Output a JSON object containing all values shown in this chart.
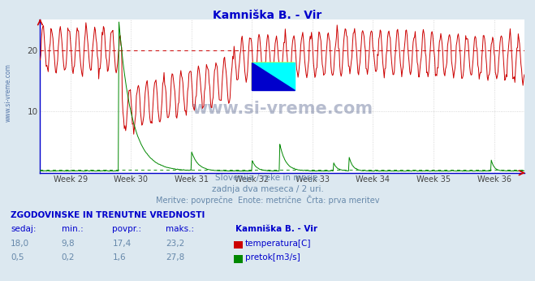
{
  "title": "Kamniška B. - Vir",
  "title_color": "#0000cc",
  "bg_color": "#dce8f0",
  "plot_bg_color": "#ffffff",
  "x_weeks": [
    "Week 29",
    "Week 30",
    "Week 31",
    "Week 32",
    "Week 33",
    "Week 34",
    "Week 35",
    "Week 36"
  ],
  "temp_color": "#cc0000",
  "flow_color": "#008800",
  "grid_color": "#cccccc",
  "axis_color": "#0000cc",
  "watermark_color": "#3366aa",
  "watermark": "www.si-vreme.com",
  "left_watermark": "www.si-vreme.com",
  "subtitle1": "Slovenija / reke in morje.",
  "subtitle2": "zadnja dva meseca / 2 uri.",
  "subtitle3": "Meritve: povprečne  Enote: metrične  Črta: prva meritev",
  "subtitle_color": "#6688aa",
  "table_header": "ZGODOVINSKE IN TRENUTNE VREDNOSTI",
  "table_cols": [
    "sedaj:",
    "min.:",
    "povpr.:",
    "maks.:"
  ],
  "table_col_color": "#0000cc",
  "table_row1": [
    "18,0",
    "9,8",
    "17,4",
    "23,2"
  ],
  "table_row2": [
    "0,5",
    "0,2",
    "1,6",
    "27,8"
  ],
  "table_station": "Kamniška B. - Vir",
  "legend_temp": "temperatura[C]",
  "legend_flow": "pretok[m3/s]",
  "n_points": 720,
  "num_weeks": 8,
  "week_start": 28.5,
  "ylim_temp": [
    0,
    25
  ],
  "ylim_flow_scale": 25,
  "flow_max": 28,
  "dashed_temp": 20.0
}
